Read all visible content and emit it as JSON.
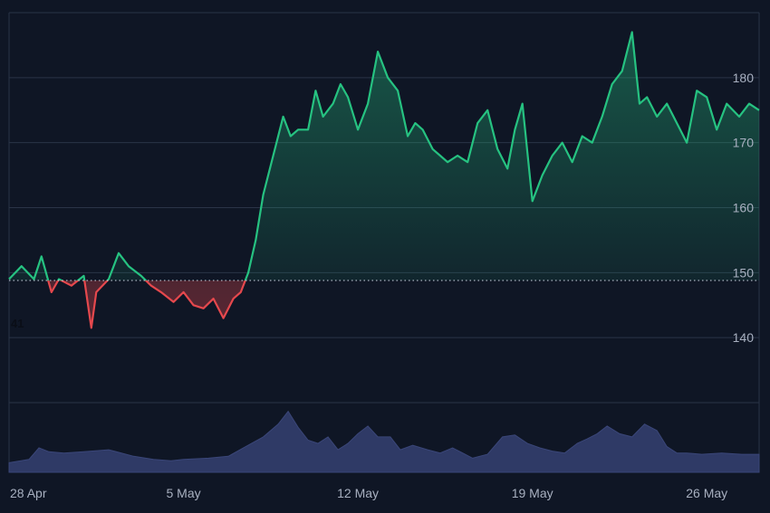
{
  "chart_data": {
    "type": "area",
    "title": "",
    "xlabel": "",
    "ylabel": "",
    "baseline": 148.8,
    "baseline_label": "41",
    "ylim": [
      130,
      190
    ],
    "yticks": [
      140,
      150,
      160,
      170,
      180
    ],
    "xticks": [
      {
        "label": "28 Apr",
        "day": 0
      },
      {
        "label": "5 May",
        "day": 7
      },
      {
        "label": "12 May",
        "day": 14
      },
      {
        "label": "19 May",
        "day": 21
      },
      {
        "label": "26 May",
        "day": 28
      }
    ],
    "x_days": [
      0,
      0.5,
      1,
      1.3,
      1.7,
      2,
      2.5,
      3,
      3.3,
      3.5,
      4,
      4.4,
      4.8,
      5.3,
      5.7,
      6.1,
      6.6,
      7,
      7.4,
      7.8,
      8.2,
      8.6,
      9,
      9.3,
      9.6,
      9.9,
      10.2,
      10.6,
      11,
      11.3,
      11.6,
      12,
      12.3,
      12.6,
      13,
      13.3,
      13.6,
      14,
      14.4,
      14.8,
      15.2,
      15.6,
      16,
      16.3,
      16.6,
      17,
      17.3,
      17.6,
      18,
      18.4,
      18.8,
      19.2,
      19.6,
      20,
      20.3,
      20.6,
      21,
      21.4,
      21.8,
      22.2,
      22.6,
      23,
      23.4,
      23.8,
      24.2,
      24.6,
      25,
      25.3,
      25.6,
      26,
      26.4,
      26.8,
      27.2,
      27.6,
      28,
      28.4,
      28.8,
      29.3,
      29.7,
      30.1
    ],
    "y_price": [
      149,
      151,
      149,
      152.5,
      147,
      149,
      148,
      149.5,
      141.5,
      147,
      149,
      153,
      151,
      149.5,
      148,
      147,
      145.5,
      147,
      145,
      144.5,
      146,
      143,
      146,
      147,
      150,
      155,
      162,
      168,
      174,
      171,
      172,
      172,
      178,
      174,
      176,
      179,
      177,
      172,
      176,
      184,
      180,
      178,
      171,
      173,
      172,
      169,
      168,
      167,
      168,
      167,
      173,
      175,
      169,
      166,
      172,
      176,
      161,
      165,
      168,
      170,
      167,
      171,
      170,
      174,
      179,
      181,
      187,
      176,
      177,
      174,
      176,
      173,
      170,
      178,
      177,
      172,
      176,
      174,
      176,
      175
    ],
    "volume": {
      "x_days": [
        0,
        0.8,
        1.2,
        1.6,
        2.2,
        3,
        4,
        5,
        5.8,
        6.5,
        7,
        8,
        8.8,
        9.5,
        10.2,
        10.8,
        11.2,
        11.6,
        12,
        12.4,
        12.8,
        13.2,
        13.6,
        14,
        14.4,
        14.8,
        15.3,
        15.7,
        16.2,
        16.8,
        17.3,
        17.8,
        18.2,
        18.6,
        19.2,
        19.8,
        20.3,
        20.8,
        21.3,
        21.8,
        22.3,
        22.8,
        23.2,
        23.6,
        24,
        24.5,
        25,
        25.5,
        26,
        26.4,
        26.8,
        27.2,
        27.8,
        28.6,
        29.4,
        30.1
      ],
      "level": [
        0.15,
        0.2,
        0.38,
        0.32,
        0.3,
        0.32,
        0.35,
        0.25,
        0.2,
        0.18,
        0.2,
        0.22,
        0.25,
        0.4,
        0.55,
        0.75,
        0.95,
        0.7,
        0.5,
        0.45,
        0.55,
        0.35,
        0.45,
        0.6,
        0.72,
        0.55,
        0.55,
        0.35,
        0.42,
        0.35,
        0.3,
        0.38,
        0.3,
        0.22,
        0.28,
        0.55,
        0.58,
        0.45,
        0.38,
        0.33,
        0.3,
        0.45,
        0.52,
        0.6,
        0.72,
        0.6,
        0.55,
        0.75,
        0.65,
        0.4,
        0.3,
        0.3,
        0.28,
        0.3,
        0.28,
        0.28
      ]
    },
    "grid": true,
    "colors": {
      "up": "#26c281",
      "down": "#e5484d",
      "grid": "#2a3447",
      "text": "#a8b0c0",
      "volume": "#2f3a66",
      "background": "#0f1625"
    }
  }
}
